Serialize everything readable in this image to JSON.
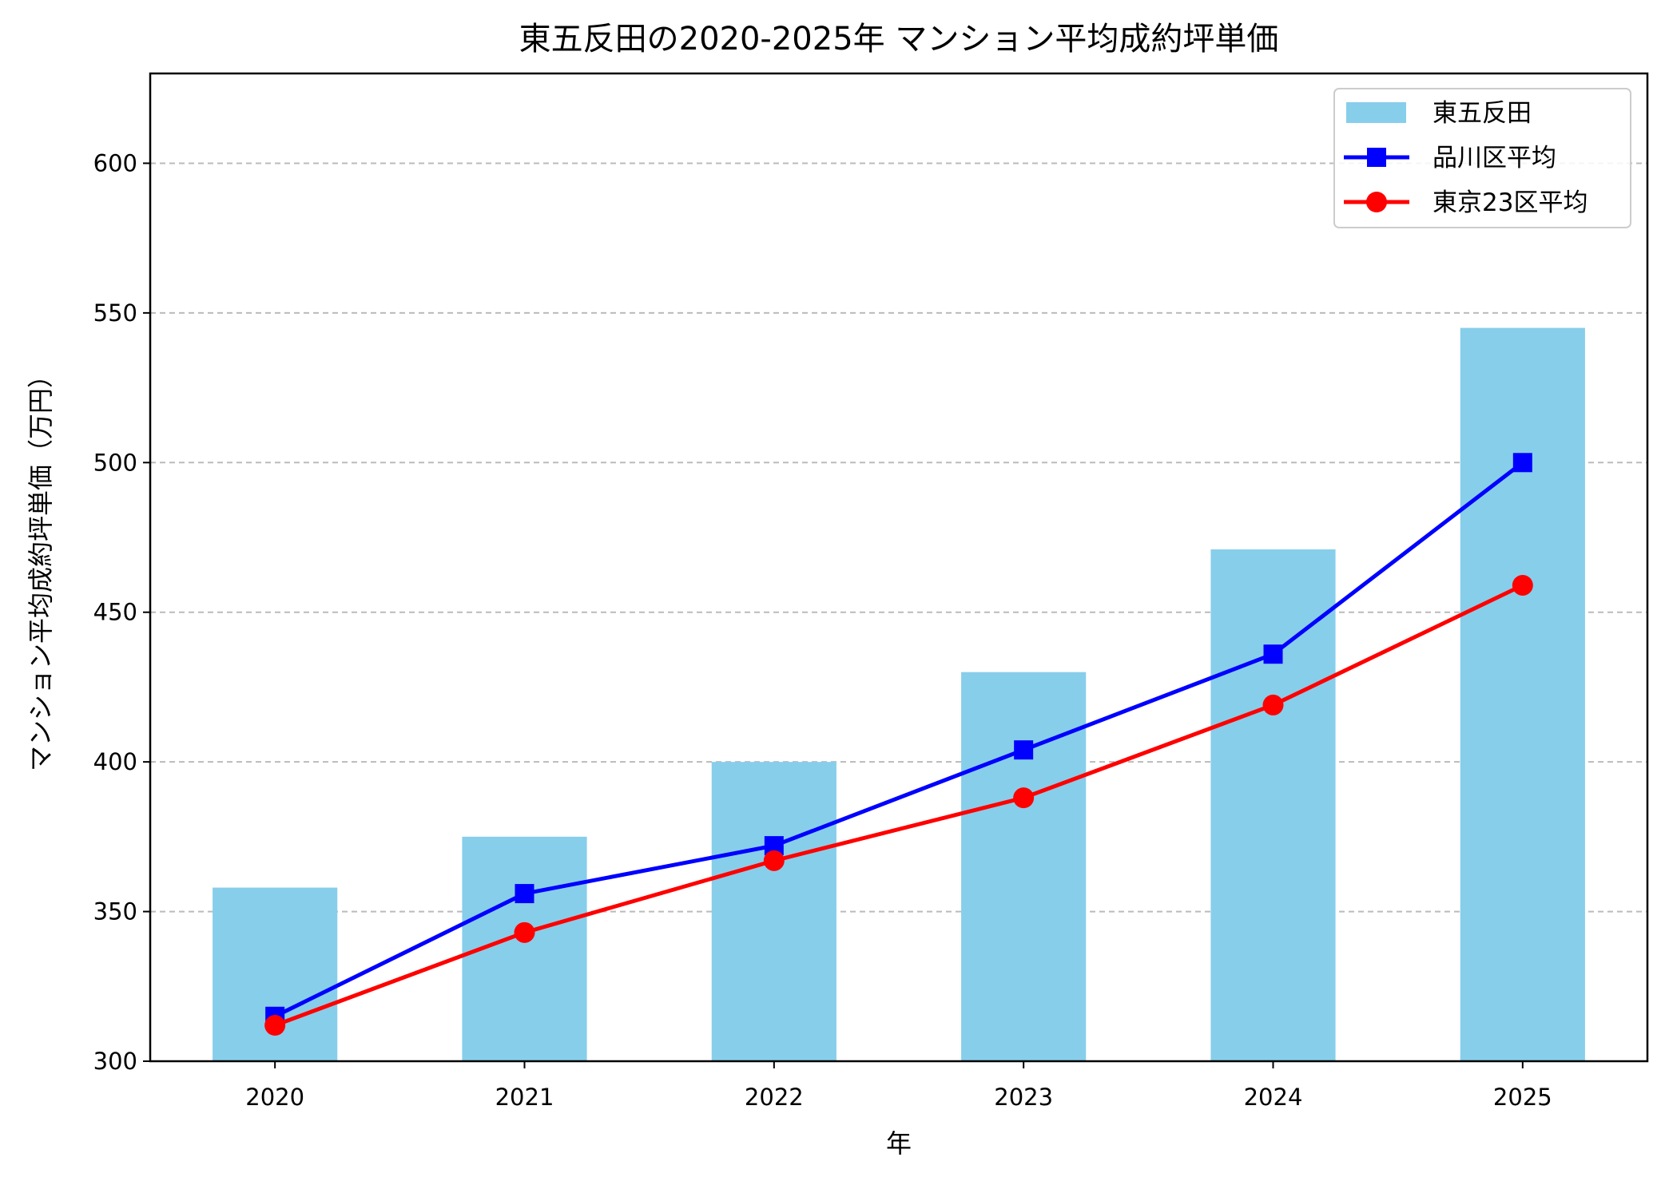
{
  "chart_data": {
    "type": "bar",
    "title": "東五反田の2020-2025年 マンション平均成約坪単価",
    "xlabel": "年",
    "ylabel": "マンション平均成約坪単価（万円）",
    "categories": [
      "2020",
      "2021",
      "2022",
      "2023",
      "2024",
      "2025"
    ],
    "ylim": [
      300,
      630
    ],
    "yticks": [
      300,
      350,
      400,
      450,
      500,
      550,
      600
    ],
    "grid": "y-dashed",
    "legend_position": "top-right",
    "series": [
      {
        "name": "東五反田",
        "kind": "bar",
        "color": "#87CEEB",
        "values": [
          358,
          375,
          400,
          430,
          471,
          545
        ]
      },
      {
        "name": "品川区平均",
        "kind": "line",
        "marker": "square",
        "color": "#0000FF",
        "values": [
          315,
          356,
          372,
          404,
          436,
          500
        ]
      },
      {
        "name": "東京23区平均",
        "kind": "line",
        "marker": "circle",
        "color": "#FF0000",
        "values": [
          312,
          343,
          367,
          388,
          419,
          459
        ]
      }
    ]
  }
}
